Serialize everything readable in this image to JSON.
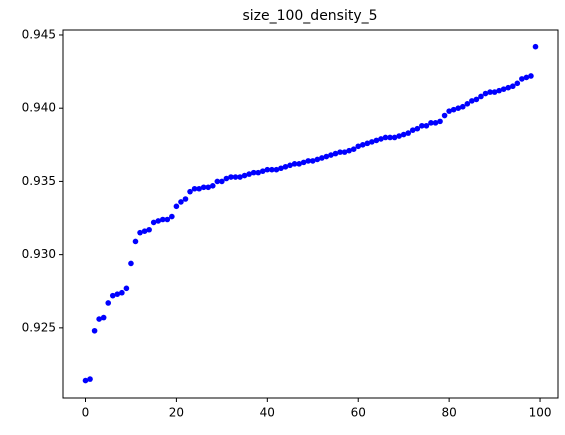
{
  "chart_data": {
    "type": "scatter",
    "title": "size_100_density_5",
    "x": [
      0,
      1,
      2,
      3,
      4,
      5,
      6,
      7,
      8,
      9,
      10,
      11,
      12,
      13,
      14,
      15,
      16,
      17,
      18,
      19,
      20,
      21,
      22,
      23,
      24,
      25,
      26,
      27,
      28,
      29,
      30,
      31,
      32,
      33,
      34,
      35,
      36,
      37,
      38,
      39,
      40,
      41,
      42,
      43,
      44,
      45,
      46,
      47,
      48,
      49,
      50,
      51,
      52,
      53,
      54,
      55,
      56,
      57,
      58,
      59,
      60,
      61,
      62,
      63,
      64,
      65,
      66,
      67,
      68,
      69,
      70,
      71,
      72,
      73,
      74,
      75,
      76,
      77,
      78,
      79,
      80,
      81,
      82,
      83,
      84,
      85,
      86,
      87,
      88,
      89,
      90,
      91,
      92,
      93,
      94,
      95,
      96,
      97,
      98,
      99
    ],
    "values": [
      0.9214,
      0.9215,
      0.9248,
      0.9256,
      0.9257,
      0.9267,
      0.9272,
      0.9273,
      0.9274,
      0.9277,
      0.9294,
      0.9309,
      0.9315,
      0.9316,
      0.9317,
      0.9322,
      0.9323,
      0.9324,
      0.9324,
      0.9326,
      0.9333,
      0.9336,
      0.9338,
      0.9343,
      0.9345,
      0.9345,
      0.9346,
      0.9346,
      0.9347,
      0.935,
      0.935,
      0.9352,
      0.9353,
      0.9353,
      0.9353,
      0.9354,
      0.9355,
      0.9356,
      0.9356,
      0.9357,
      0.9358,
      0.9358,
      0.9358,
      0.9359,
      0.936,
      0.9361,
      0.9362,
      0.9362,
      0.9363,
      0.9364,
      0.9364,
      0.9365,
      0.9366,
      0.9367,
      0.9368,
      0.9369,
      0.937,
      0.937,
      0.9371,
      0.9372,
      0.9374,
      0.9375,
      0.9376,
      0.9377,
      0.9378,
      0.9379,
      0.938,
      0.938,
      0.938,
      0.9381,
      0.9382,
      0.9383,
      0.9385,
      0.9386,
      0.9388,
      0.9388,
      0.939,
      0.939,
      0.9391,
      0.9395,
      0.9398,
      0.9399,
      0.94,
      0.9401,
      0.9403,
      0.9405,
      0.9406,
      0.9408,
      0.941,
      0.9411,
      0.9411,
      0.9412,
      0.9413,
      0.9414,
      0.9415,
      0.9417,
      0.942,
      0.9421,
      0.9422,
      0.9442
    ],
    "color": "#0000ff",
    "xlim": [
      -4.95,
      103.95
    ],
    "xticks": [
      0,
      20,
      40,
      60,
      80,
      100
    ],
    "ylim": [
      0.92021,
      0.94534
    ],
    "yticks": [
      0.925,
      {
        "value": 0.93,
        "label": "0.930"
      },
      0.935,
      {
        "value": 0.94,
        "label": "0.940"
      },
      0.945
    ]
  }
}
